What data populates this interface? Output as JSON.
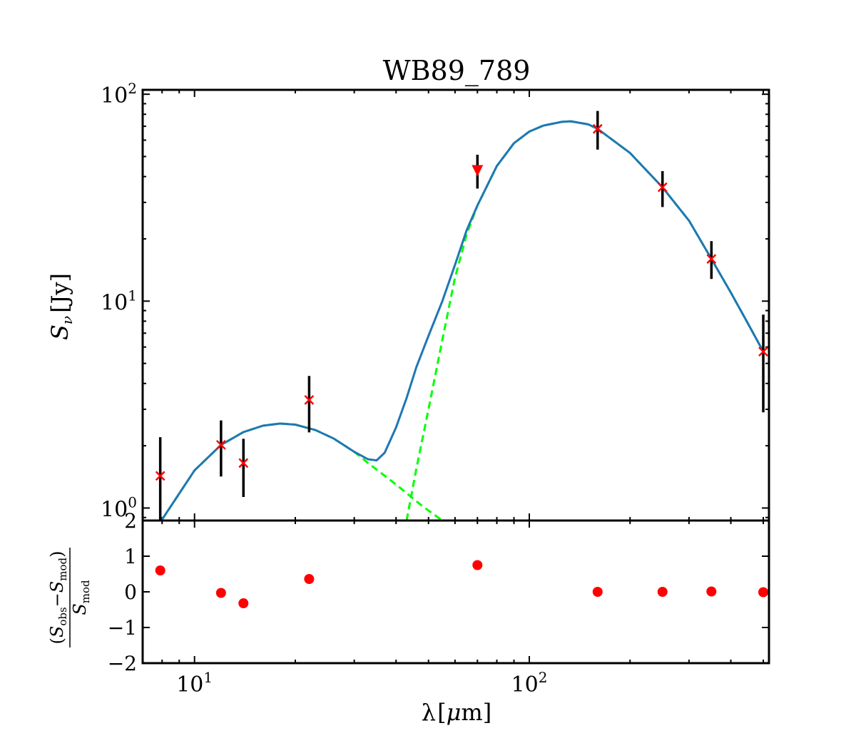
{
  "chart_data": [
    {
      "type": "scatter",
      "title": "WB89_789",
      "ylabel": "S_ν [Jy]",
      "xscale": "log",
      "yscale": "log",
      "xlim": [
        7.0,
        520
      ],
      "ylim": [
        0.87,
        105
      ],
      "grid": false,
      "yticks": [
        {
          "value": 1,
          "base": "10",
          "exp": "0"
        },
        {
          "value": 10,
          "base": "10",
          "exp": "1"
        },
        {
          "value": 100,
          "base": "10",
          "exp": "2"
        }
      ],
      "observed": [
        {
          "x": 7.9,
          "y": 1.43,
          "yerr_low": 0.58,
          "yerr_high": 2.2,
          "marker": "x"
        },
        {
          "x": 12.0,
          "y": 2.02,
          "yerr_low": 1.42,
          "yerr_high": 2.65,
          "marker": "x"
        },
        {
          "x": 14.0,
          "y": 1.65,
          "yerr_low": 1.13,
          "yerr_high": 2.16,
          "marker": "x"
        },
        {
          "x": 22.0,
          "y": 3.33,
          "yerr_low": 2.32,
          "yerr_high": 4.35,
          "marker": "x"
        },
        {
          "x": 70.0,
          "y": 43.0,
          "yerr_low": 35.0,
          "yerr_high": 51.0,
          "marker": "upper-limit"
        },
        {
          "x": 160.0,
          "y": 68.0,
          "yerr_low": 54.0,
          "yerr_high": 83.0,
          "marker": "x"
        },
        {
          "x": 250.0,
          "y": 35.5,
          "yerr_low": 28.5,
          "yerr_high": 42.5,
          "marker": "x"
        },
        {
          "x": 350.0,
          "y": 16.0,
          "yerr_low": 12.8,
          "yerr_high": 19.5,
          "marker": "x"
        },
        {
          "x": 500.0,
          "y": 5.7,
          "yerr_low": 2.9,
          "yerr_high": 8.6,
          "marker": "x"
        }
      ],
      "warm_component": {
        "x": [
          8.0,
          10.0,
          12.0,
          14.0,
          16.0,
          18.0,
          20.0,
          23.0,
          26.0,
          30.0,
          33.0,
          40.0,
          48.0,
          55.0
        ],
        "y": [
          0.88,
          1.52,
          2.02,
          2.33,
          2.5,
          2.56,
          2.53,
          2.38,
          2.17,
          1.87,
          1.65,
          1.3,
          1.02,
          0.87
        ]
      },
      "cold_component": {
        "x": [
          43.0,
          46.0,
          50.0,
          55.0,
          60.0,
          65.0,
          70.0,
          80.0,
          90.0,
          100.0,
          110.0,
          125.0,
          133.0,
          150.0,
          160.0,
          200.0,
          250.0,
          300.0,
          350.0,
          400.0,
          450.0,
          500.0
        ],
        "y": [
          0.87,
          1.55,
          3.0,
          6.5,
          13.0,
          21.0,
          29.0,
          45.0,
          58.0,
          66.0,
          70.5,
          73.5,
          74.0,
          71.5,
          68.0,
          52.0,
          35.5,
          24.5,
          16.0,
          11.0,
          7.8,
          5.7
        ]
      },
      "total_model": {
        "x": [
          8.0,
          10.0,
          12.0,
          14.0,
          16.0,
          18.0,
          20.0,
          23.0,
          26.0,
          30.0,
          33.0,
          35.0,
          37.0,
          40.0,
          43.0,
          46.0,
          50.0,
          55.0,
          60.0,
          65.0,
          70.0,
          80.0,
          90.0,
          100.0,
          110.0,
          125.0,
          133.0,
          150.0,
          160.0,
          200.0,
          250.0,
          300.0,
          350.0,
          400.0,
          450.0,
          500.0
        ],
        "y": [
          0.88,
          1.52,
          2.02,
          2.33,
          2.5,
          2.56,
          2.53,
          2.38,
          2.17,
          1.87,
          1.72,
          1.7,
          1.85,
          2.45,
          3.4,
          4.8,
          6.8,
          10.0,
          15.0,
          22.0,
          29.0,
          45.0,
          58.0,
          66.0,
          70.5,
          73.5,
          74.0,
          71.5,
          68.0,
          52.0,
          35.5,
          24.5,
          16.0,
          11.0,
          7.8,
          5.7
        ]
      }
    },
    {
      "type": "scatter",
      "xlabel": "λ [μm]",
      "ylabel": "(S_obs − S_mod) / S_mod",
      "xscale": "log",
      "xlim": [
        7.0,
        520
      ],
      "ylim": [
        -2,
        2
      ],
      "yticks": [
        "−2",
        "−1",
        "0",
        "1",
        "2"
      ],
      "xticks": [
        {
          "value": 10,
          "base": "10",
          "exp": "1"
        },
        {
          "value": 100,
          "base": "10",
          "exp": "2"
        }
      ],
      "points": [
        {
          "x": 7.9,
          "y": 0.6
        },
        {
          "x": 12.0,
          "y": -0.03
        },
        {
          "x": 14.0,
          "y": -0.32
        },
        {
          "x": 22.0,
          "y": 0.36
        },
        {
          "x": 70.0,
          "y": 0.75
        },
        {
          "x": 160.0,
          "y": 0.0
        },
        {
          "x": 250.0,
          "y": 0.0
        },
        {
          "x": 350.0,
          "y": 0.01
        },
        {
          "x": 500.0,
          "y": -0.01
        }
      ]
    }
  ],
  "colors": {
    "total_model": "#1f77b4",
    "components": "#00ff00",
    "observed_marker": "#ff0000",
    "error_bar": "#000000"
  }
}
